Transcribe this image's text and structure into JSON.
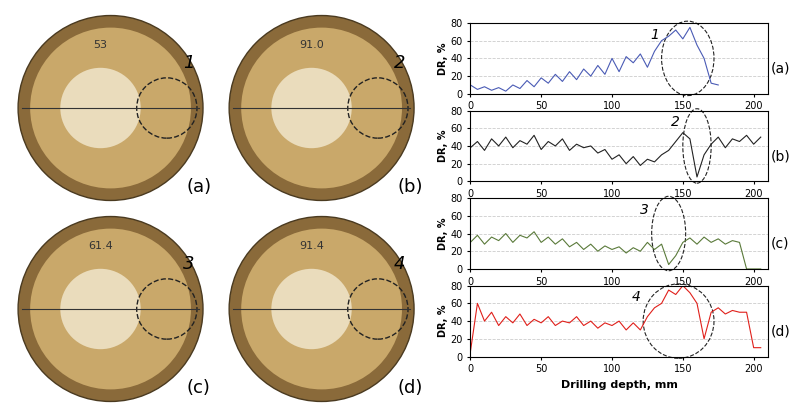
{
  "chart_data": [
    {
      "type": "line",
      "panel": "(a)",
      "y_label": "DR, %",
      "highlight": {
        "text": "1",
        "x_range": [
          135,
          172
        ]
      },
      "xlim": [
        0,
        210
      ],
      "xticks": [
        0,
        50,
        100,
        150,
        200
      ],
      "ylim": [
        0,
        80
      ],
      "yticks": [
        0,
        20,
        40,
        60,
        80
      ],
      "grid": true,
      "series": [
        {
          "color": "#4a5bb5",
          "x": [
            0,
            5,
            10,
            15,
            20,
            25,
            30,
            35,
            40,
            45,
            50,
            55,
            60,
            65,
            70,
            75,
            80,
            85,
            90,
            95,
            100,
            105,
            110,
            115,
            120,
            125,
            130,
            135,
            140,
            145,
            150,
            155,
            160,
            165,
            170,
            175
          ],
          "values": [
            10,
            5,
            8,
            4,
            7,
            3,
            10,
            6,
            15,
            8,
            18,
            12,
            22,
            14,
            25,
            16,
            28,
            20,
            32,
            22,
            40,
            25,
            42,
            35,
            45,
            30,
            48,
            60,
            65,
            72,
            62,
            75,
            55,
            40,
            12,
            10
          ]
        }
      ]
    },
    {
      "type": "line",
      "panel": "(b)",
      "y_label": "DR, %",
      "highlight": {
        "text": "2",
        "x_range": [
          150,
          170
        ]
      },
      "xlim": [
        0,
        210
      ],
      "xticks": [
        0,
        50,
        100,
        150,
        200
      ],
      "ylim": [
        0,
        80
      ],
      "yticks": [
        0,
        20,
        40,
        60,
        80
      ],
      "grid": true,
      "series": [
        {
          "color": "#222222",
          "x": [
            0,
            5,
            10,
            15,
            20,
            25,
            30,
            35,
            40,
            45,
            50,
            55,
            60,
            65,
            70,
            75,
            80,
            85,
            90,
            95,
            100,
            105,
            110,
            115,
            120,
            125,
            130,
            135,
            140,
            145,
            150,
            155,
            160,
            165,
            170,
            175,
            180,
            185,
            190,
            195,
            200,
            205
          ],
          "values": [
            38,
            45,
            35,
            48,
            40,
            50,
            38,
            46,
            42,
            52,
            36,
            45,
            40,
            48,
            35,
            42,
            38,
            40,
            32,
            36,
            25,
            30,
            20,
            28,
            18,
            25,
            22,
            30,
            35,
            45,
            55,
            48,
            5,
            30,
            42,
            50,
            38,
            48,
            45,
            52,
            42,
            50
          ]
        }
      ]
    },
    {
      "type": "line",
      "panel": "(c)",
      "y_label": "DR, %",
      "highlight": {
        "text": "3",
        "x_range": [
          128,
          152
        ]
      },
      "xlim": [
        0,
        210
      ],
      "xticks": [
        0,
        50,
        100,
        150,
        200
      ],
      "ylim": [
        0,
        80
      ],
      "yticks": [
        0,
        20,
        40,
        60,
        80
      ],
      "grid": true,
      "series": [
        {
          "color": "#5a7a3a",
          "x": [
            0,
            5,
            10,
            15,
            20,
            25,
            30,
            35,
            40,
            45,
            50,
            55,
            60,
            65,
            70,
            75,
            80,
            85,
            90,
            95,
            100,
            105,
            110,
            115,
            120,
            125,
            130,
            135,
            140,
            145,
            150,
            155,
            160,
            165,
            170,
            175,
            180,
            185,
            190,
            195,
            200,
            205
          ],
          "values": [
            30,
            38,
            28,
            36,
            32,
            40,
            30,
            38,
            35,
            42,
            30,
            36,
            28,
            34,
            25,
            30,
            22,
            28,
            20,
            26,
            22,
            25,
            18,
            24,
            20,
            30,
            22,
            28,
            5,
            15,
            30,
            35,
            28,
            36,
            30,
            34,
            28,
            32,
            30,
            0,
            0,
            0
          ]
        }
      ]
    },
    {
      "type": "line",
      "panel": "(d)",
      "y_label": "DR, %",
      "x_label": "Drilling depth, mm",
      "highlight": {
        "text": "4",
        "x_range": [
          122,
          172
        ]
      },
      "xlim": [
        0,
        210
      ],
      "xticks": [
        0,
        50,
        100,
        150,
        200
      ],
      "ylim": [
        0,
        80
      ],
      "yticks": [
        0,
        20,
        40,
        60,
        80
      ],
      "grid": true,
      "series": [
        {
          "color": "#e0201b",
          "x": [
            0,
            5,
            10,
            15,
            20,
            25,
            30,
            35,
            40,
            45,
            50,
            55,
            60,
            65,
            70,
            75,
            80,
            85,
            90,
            95,
            100,
            105,
            110,
            115,
            120,
            125,
            130,
            135,
            140,
            145,
            150,
            155,
            160,
            165,
            170,
            175,
            180,
            185,
            190,
            195,
            200,
            205
          ],
          "values": [
            5,
            60,
            40,
            50,
            35,
            45,
            38,
            48,
            35,
            42,
            38,
            45,
            35,
            40,
            38,
            45,
            35,
            40,
            32,
            38,
            35,
            40,
            30,
            38,
            30,
            45,
            55,
            60,
            75,
            70,
            80,
            72,
            60,
            20,
            50,
            55,
            48,
            52,
            50,
            50,
            10,
            10
          ]
        }
      ]
    }
  ],
  "photos": [
    {
      "label": "(a)",
      "marker": "1",
      "inscription": "53"
    },
    {
      "label": "(b)",
      "marker": "2",
      "inscription": "91.0"
    },
    {
      "label": "(c)",
      "marker": "3",
      "inscription": "61.4"
    },
    {
      "label": "(d)",
      "marker": "4",
      "inscription": "91.4"
    }
  ]
}
